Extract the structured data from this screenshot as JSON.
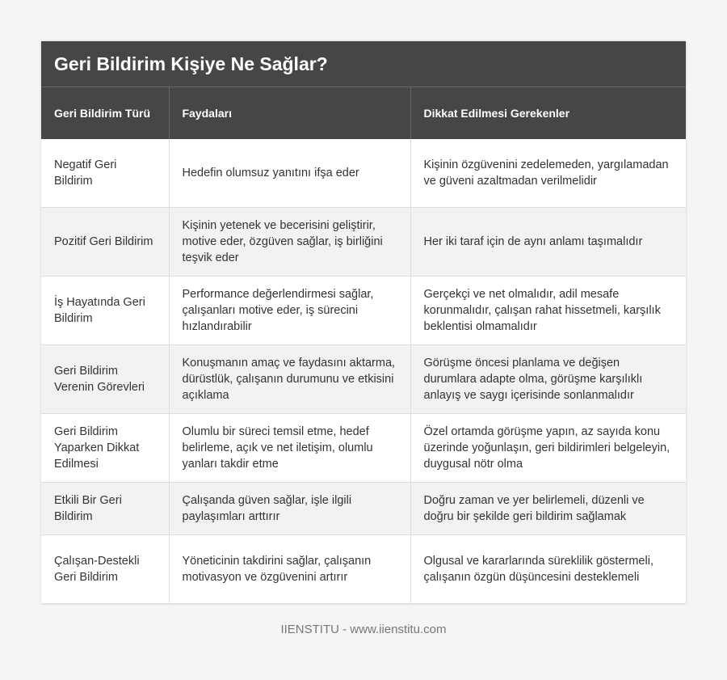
{
  "title": "Geri Bildirim Kişiye Ne Sağlar?",
  "headers": [
    "Geri Bildirim Türü",
    "Faydaları",
    "Dikkat Edilmesi Gerekenler"
  ],
  "rows": [
    [
      "Negatif Geri Bildirim",
      "Hedefin olumsuz yanıtını ifşa eder",
      "Kişinin özgüvenini zedelemeden, yargılamadan ve güveni azaltmadan verilmelidir"
    ],
    [
      "Pozitif Geri Bildirim",
      "Kişinin yetenek ve becerisini geliştirir, motive eder, özgüven sağlar, iş birliğini teşvik eder",
      "Her iki taraf için de aynı anlamı taşımalıdır"
    ],
    [
      "İş Hayatında Geri Bildirim",
      "Performance değerlendirmesi sağlar, çalışanları motive eder, iş sürecini hızlandırabilir",
      "Gerçekçi ve net olmalıdır, adil mesafe korunmalıdır, çalışan rahat hissetmeli, karşılık beklentisi olmamalıdır"
    ],
    [
      "Geri Bildirim Verenin Görevleri",
      "Konuşmanın amaç ve faydasını aktarma, dürüstlük, çalışanın durumunu ve etkisini açıklama",
      "Görüşme öncesi planlama ve değişen durumlara adapte olma, görüşme karşılıklı anlayış ve saygı içerisinde sonlanmalıdır"
    ],
    [
      "Geri Bildirim Yaparken Dikkat Edilmesi",
      "Olumlu bir süreci temsil etme, hedef belirleme, açık ve net iletişim, olumlu yanları takdir etme",
      "Özel ortamda görüşme yapın, az sayıda konu üzerinde yoğunlaşın, geri bildirimleri belgeleyin, duygusal nötr olma"
    ],
    [
      "Etkili Bir Geri Bildirim",
      "Çalışanda güven sağlar, işle ilgili paylaşımları arttırır",
      "Doğru zaman ve yer belirlemeli, düzenli ve doğru bir şekilde geri bildirim sağlamak"
    ],
    [
      "Çalışan-Destekli Geri Bildirim",
      "Yöneticinin takdirini sağlar, çalışanın motivasyon ve özgüvenini artırır",
      "Olgusal ve kararlarında süreklilik göstermeli, çalışanın özgün düşüncesini desteklemeli"
    ]
  ],
  "footer": "IIENSTITU - www.iienstitu.com"
}
